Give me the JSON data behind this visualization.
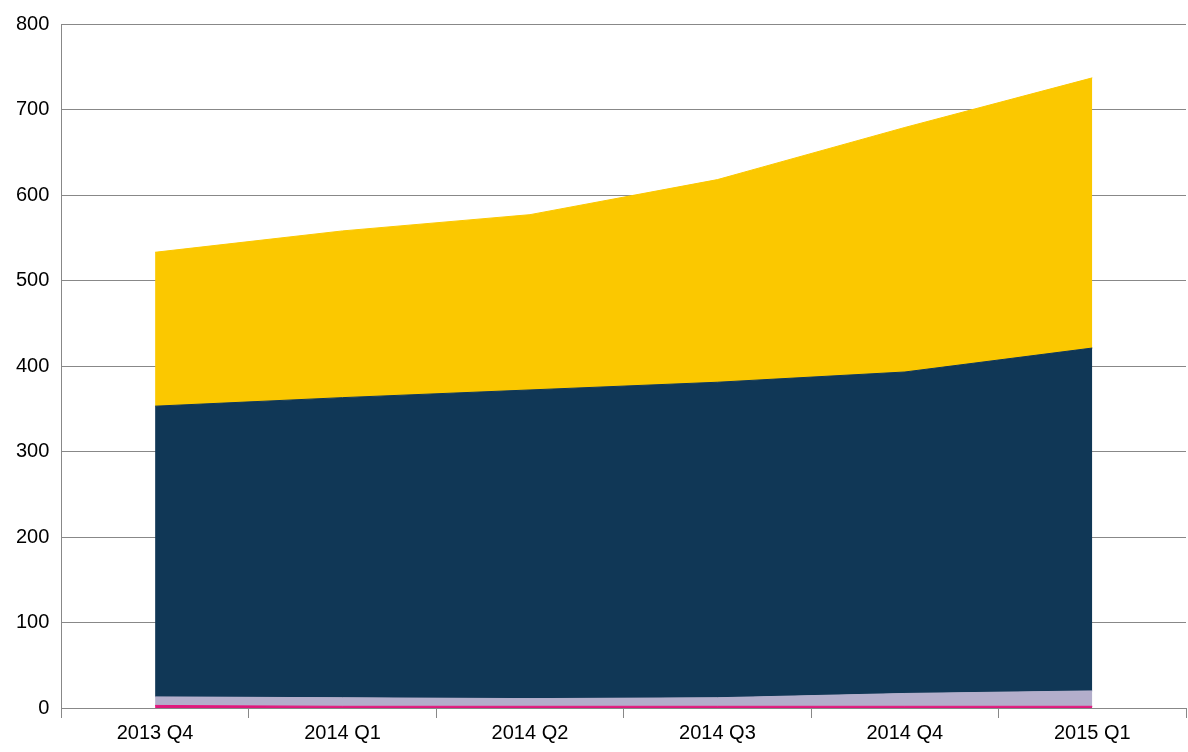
{
  "chart_data": {
    "type": "area",
    "stacked": true,
    "categories": [
      "2013 Q4",
      "2014 Q1",
      "2014 Q2",
      "2014 Q3",
      "2014 Q4",
      "2015 Q1"
    ],
    "series": [
      {
        "color": "#e0197d",
        "values": [
          3,
          2,
          2,
          2,
          2,
          2
        ]
      },
      {
        "color": "#b3aecb",
        "values": [
          10,
          10,
          9,
          10,
          15,
          18
        ]
      },
      {
        "color": "#103756",
        "values": [
          340,
          351,
          361,
          369,
          376,
          401
        ]
      },
      {
        "color": "#fbc800",
        "values": [
          180,
          195,
          205,
          237,
          286,
          316
        ]
      }
    ],
    "ylim": [
      0,
      800
    ],
    "yticks": [
      0,
      100,
      200,
      300,
      400,
      500,
      600,
      700,
      800
    ],
    "grid": "y",
    "legend": false
  }
}
